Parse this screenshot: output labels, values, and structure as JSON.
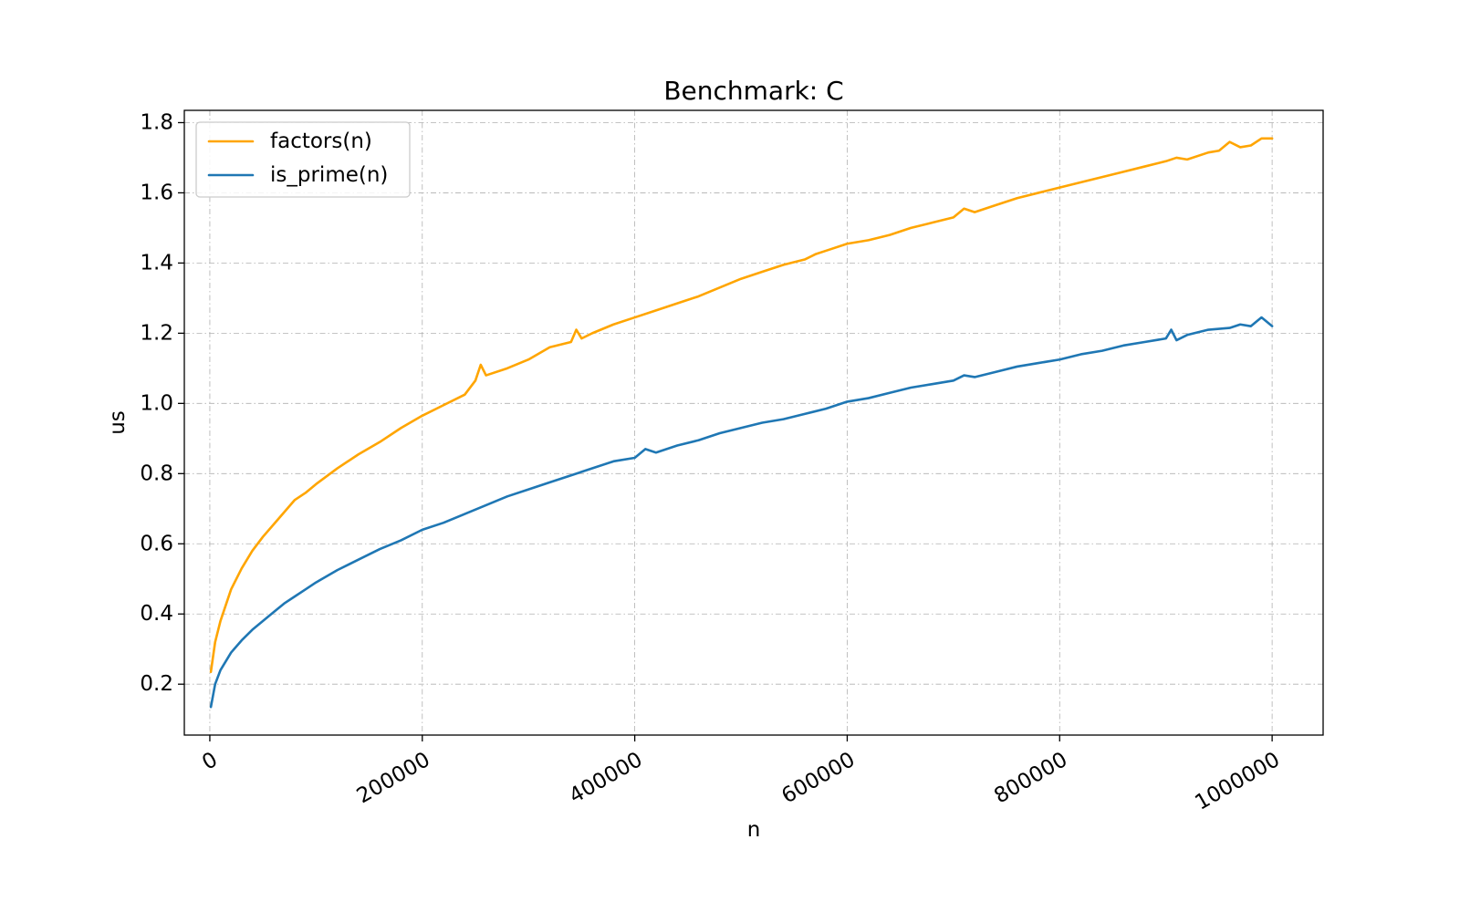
{
  "chart_data": {
    "type": "line",
    "title": "Benchmark: C",
    "xlabel": "n",
    "ylabel": "us",
    "xlim": [
      -24000,
      1048000
    ],
    "ylim": [
      0.055,
      1.835
    ],
    "x_ticks": [
      0,
      200000,
      400000,
      600000,
      800000,
      1000000
    ],
    "x_tick_labels": [
      "0",
      "200000",
      "400000",
      "600000",
      "800000",
      "1000000"
    ],
    "y_ticks": [
      0.2,
      0.4,
      0.6,
      0.8,
      1.0,
      1.2,
      1.4,
      1.6,
      1.8
    ],
    "y_tick_labels": [
      "0.2",
      "0.4",
      "0.6",
      "0.8",
      "1.0",
      "1.2",
      "1.4",
      "1.6",
      "1.8"
    ],
    "grid": true,
    "legend_position": "top-left",
    "series": [
      {
        "name": "factors(n)",
        "color": "#ffa500",
        "x": [
          1000,
          5000,
          10000,
          20000,
          30000,
          40000,
          50000,
          60000,
          70000,
          80000,
          90000,
          100000,
          120000,
          140000,
          160000,
          180000,
          200000,
          220000,
          240000,
          250000,
          255000,
          260000,
          280000,
          300000,
          320000,
          340000,
          345000,
          350000,
          360000,
          380000,
          400000,
          420000,
          440000,
          460000,
          480000,
          500000,
          520000,
          540000,
          560000,
          570000,
          580000,
          600000,
          620000,
          640000,
          660000,
          680000,
          700000,
          710000,
          720000,
          740000,
          760000,
          780000,
          800000,
          820000,
          840000,
          860000,
          880000,
          900000,
          910000,
          920000,
          940000,
          950000,
          960000,
          970000,
          980000,
          990000,
          1000000
        ],
        "y": [
          0.235,
          0.32,
          0.38,
          0.47,
          0.53,
          0.58,
          0.62,
          0.655,
          0.69,
          0.725,
          0.745,
          0.77,
          0.815,
          0.855,
          0.89,
          0.93,
          0.965,
          0.995,
          1.025,
          1.065,
          1.11,
          1.08,
          1.1,
          1.125,
          1.16,
          1.175,
          1.21,
          1.185,
          1.2,
          1.225,
          1.245,
          1.265,
          1.285,
          1.305,
          1.33,
          1.355,
          1.375,
          1.395,
          1.41,
          1.425,
          1.435,
          1.455,
          1.465,
          1.48,
          1.5,
          1.515,
          1.53,
          1.555,
          1.545,
          1.565,
          1.585,
          1.6,
          1.615,
          1.63,
          1.645,
          1.66,
          1.675,
          1.69,
          1.7,
          1.695,
          1.715,
          1.72,
          1.745,
          1.73,
          1.735,
          1.755,
          1.755
        ]
      },
      {
        "name": "is_prime(n)",
        "color": "#1f77b4",
        "x": [
          1000,
          5000,
          10000,
          20000,
          30000,
          40000,
          50000,
          60000,
          70000,
          80000,
          90000,
          100000,
          120000,
          140000,
          160000,
          180000,
          200000,
          220000,
          240000,
          260000,
          280000,
          300000,
          320000,
          340000,
          360000,
          380000,
          400000,
          410000,
          420000,
          440000,
          460000,
          480000,
          500000,
          520000,
          540000,
          560000,
          580000,
          600000,
          620000,
          640000,
          660000,
          680000,
          700000,
          710000,
          720000,
          740000,
          760000,
          780000,
          800000,
          820000,
          840000,
          860000,
          880000,
          900000,
          905000,
          910000,
          920000,
          940000,
          960000,
          970000,
          980000,
          990000,
          1000000
        ],
        "y": [
          0.135,
          0.2,
          0.24,
          0.29,
          0.325,
          0.355,
          0.38,
          0.405,
          0.43,
          0.45,
          0.47,
          0.49,
          0.525,
          0.555,
          0.585,
          0.61,
          0.64,
          0.66,
          0.685,
          0.71,
          0.735,
          0.755,
          0.775,
          0.795,
          0.815,
          0.835,
          0.845,
          0.87,
          0.86,
          0.88,
          0.895,
          0.915,
          0.93,
          0.945,
          0.955,
          0.97,
          0.985,
          1.005,
          1.015,
          1.03,
          1.045,
          1.055,
          1.065,
          1.08,
          1.075,
          1.09,
          1.105,
          1.115,
          1.125,
          1.14,
          1.15,
          1.165,
          1.175,
          1.185,
          1.21,
          1.18,
          1.195,
          1.21,
          1.215,
          1.225,
          1.22,
          1.245,
          1.22
        ]
      }
    ]
  }
}
